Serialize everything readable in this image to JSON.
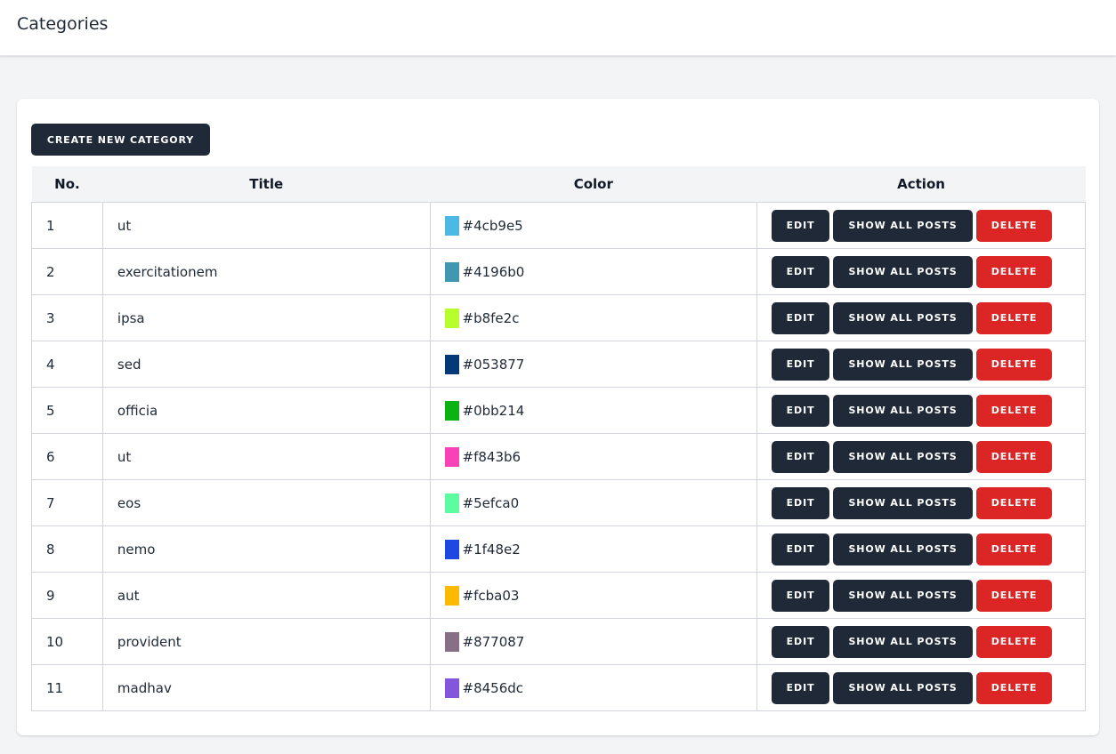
{
  "header": {
    "title": "Categories"
  },
  "toolbar": {
    "create_label": "CREATE NEW CATEGORY"
  },
  "table": {
    "columns": [
      "No.",
      "Title",
      "Color",
      "Action"
    ],
    "actions": {
      "edit": "EDIT",
      "show": "SHOW ALL POSTS",
      "delete": "DELETE"
    },
    "rows": [
      {
        "no": "1",
        "title": "ut",
        "color": "#4cb9e5"
      },
      {
        "no": "2",
        "title": "exercitationem",
        "color": "#4196b0"
      },
      {
        "no": "3",
        "title": "ipsa",
        "color": "#b8fe2c"
      },
      {
        "no": "4",
        "title": "sed",
        "color": "#053877"
      },
      {
        "no": "5",
        "title": "officia",
        "color": "#0bb214"
      },
      {
        "no": "6",
        "title": "ut",
        "color": "#f843b6"
      },
      {
        "no": "7",
        "title": "eos",
        "color": "#5efca0"
      },
      {
        "no": "8",
        "title": "nemo",
        "color": "#1f48e2"
      },
      {
        "no": "9",
        "title": "aut",
        "color": "#fcba03"
      },
      {
        "no": "10",
        "title": "provident",
        "color": "#877087"
      },
      {
        "no": "11",
        "title": "madhav",
        "color": "#8456dc"
      }
    ]
  },
  "theme": {
    "primary": "#1f2937",
    "danger": "#dc2626",
    "background": "#f3f4f6"
  }
}
